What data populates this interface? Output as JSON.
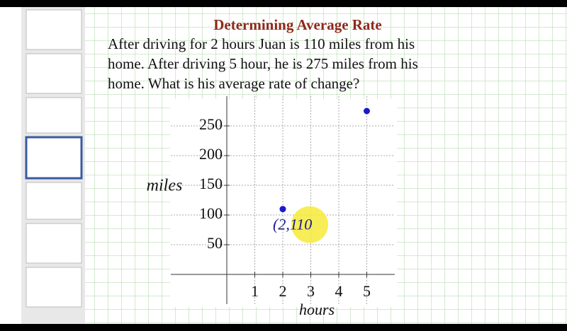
{
  "chart_data": {
    "type": "scatter",
    "title": "Determining Average Rate",
    "subtitle": [
      "After driving for 2 hours Juan is 110 miles from his",
      "home.  After driving 5 hour, he is 275 miles from his",
      "home.  What is his average rate of change?"
    ],
    "x_label": "hours",
    "y_label": "miles",
    "annotation": "(2,110",
    "x": [
      2,
      5
    ],
    "values": [
      110,
      275
    ],
    "color": "#1a1acc",
    "xlim": [
      -2,
      6
    ],
    "ylim": [
      -50,
      300
    ],
    "xticks": [
      1,
      2,
      3,
      4,
      5
    ],
    "yticks": [
      50,
      100,
      150,
      200,
      250
    ],
    "grid": true
  }
}
